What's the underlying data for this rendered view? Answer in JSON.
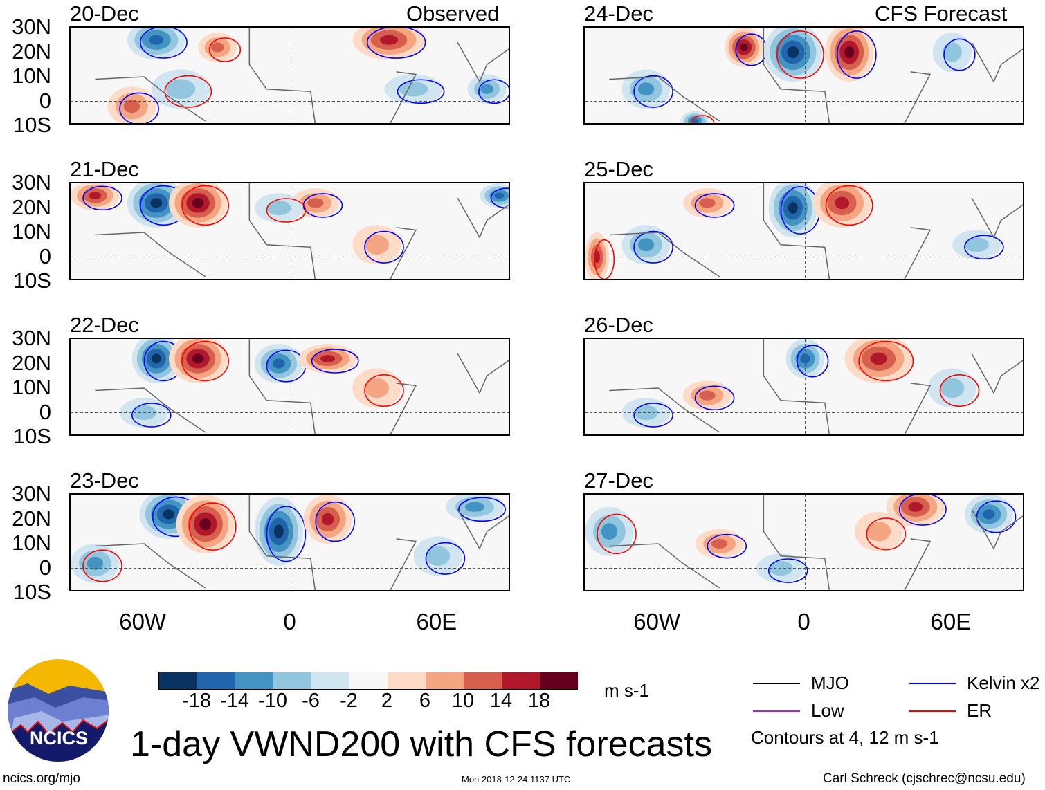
{
  "header": {
    "observed_label": "Observed",
    "forecast_label": "CFS Forecast"
  },
  "panels": [
    {
      "date": "20-Dec",
      "group": "observed"
    },
    {
      "date": "21-Dec",
      "group": "observed"
    },
    {
      "date": "22-Dec",
      "group": "observed"
    },
    {
      "date": "23-Dec",
      "group": "observed"
    },
    {
      "date": "24-Dec",
      "group": "forecast"
    },
    {
      "date": "25-Dec",
      "group": "forecast"
    },
    {
      "date": "26-Dec",
      "group": "forecast"
    },
    {
      "date": "27-Dec",
      "group": "forecast"
    }
  ],
  "axes": {
    "lat_ticks": [
      "30N",
      "20N",
      "10N",
      "0",
      "10S"
    ],
    "lon_ticks": [
      "60W",
      "0",
      "60E"
    ],
    "lat_range": [
      -10,
      30
    ],
    "lon_range": [
      -90,
      90
    ]
  },
  "colorbar": {
    "units": "m s-1",
    "labels": [
      "-18",
      "-14",
      "-10",
      "-6",
      "-2",
      "2",
      "6",
      "10",
      "14",
      "18"
    ],
    "colors": [
      "#0b3362",
      "#2166ac",
      "#4393c3",
      "#92c5de",
      "#d1e5f0",
      "#f7f7f7",
      "#fddbc7",
      "#f4a582",
      "#d6604d",
      "#b2182b",
      "#67001f"
    ]
  },
  "legend": {
    "items": [
      {
        "label": "MJO",
        "color": "#000000"
      },
      {
        "label": "Kelvin x2",
        "color": "#0000ff"
      },
      {
        "label": "Low",
        "color": "#a020f0"
      },
      {
        "label": "ER",
        "color": "#ff0000"
      }
    ],
    "note": "Contours at 4, 12 m s-1"
  },
  "footer": {
    "title": "1-day VWND200 with CFS forecasts",
    "url": "ncics.org/mjo",
    "timestamp": "Mon 2018-12-24 1137 UTC",
    "credit": "Carl Schreck (cjschrec@ncsu.edu)",
    "logo_text": "NCICS"
  }
}
